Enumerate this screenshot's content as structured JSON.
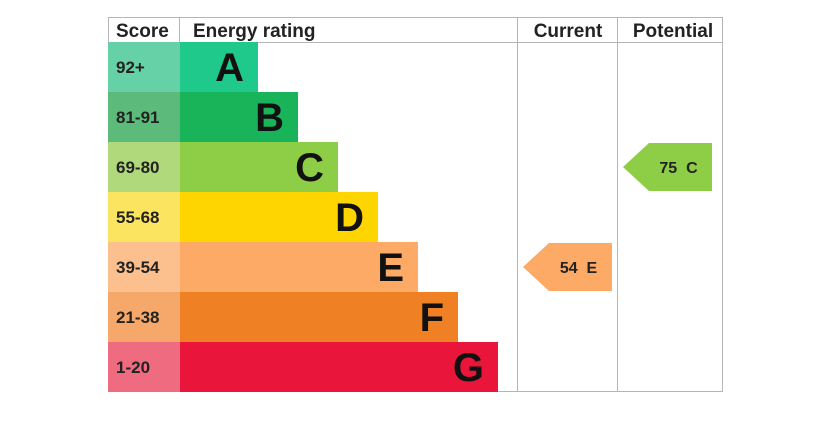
{
  "chart_data": {
    "type": "bar",
    "headers": {
      "score": "Score",
      "energy_rating": "Energy rating",
      "current": "Current",
      "potential": "Potential"
    },
    "bands": [
      {
        "letter": "A",
        "range": "92+",
        "min": 92,
        "max": 100,
        "color": "#1ec98b",
        "score_bg": "#66d0a6"
      },
      {
        "letter": "B",
        "range": "81-91",
        "min": 81,
        "max": 91,
        "color": "#19b459",
        "score_bg": "#5cba7a"
      },
      {
        "letter": "C",
        "range": "69-80",
        "min": 69,
        "max": 80,
        "color": "#8dce46",
        "score_bg": "#b0d97b"
      },
      {
        "letter": "D",
        "range": "55-68",
        "min": 55,
        "max": 68,
        "color": "#ffd500",
        "score_bg": "#fbe45f"
      },
      {
        "letter": "E",
        "range": "39-54",
        "min": 39,
        "max": 54,
        "color": "#fcaa65",
        "score_bg": "#fbc08d"
      },
      {
        "letter": "F",
        "range": "21-38",
        "min": 21,
        "max": 38,
        "color": "#ef8023",
        "score_bg": "#f5a86a"
      },
      {
        "letter": "G",
        "range": "1-20",
        "min": 1,
        "max": 20,
        "color": "#e9153b",
        "score_bg": "#ee6b80"
      }
    ],
    "current": {
      "value": 54,
      "band": "E",
      "label": "54  E",
      "color": "#fcaa65"
    },
    "potential": {
      "value": 75,
      "band": "C",
      "label": "75  C",
      "color": "#8dce46"
    }
  }
}
